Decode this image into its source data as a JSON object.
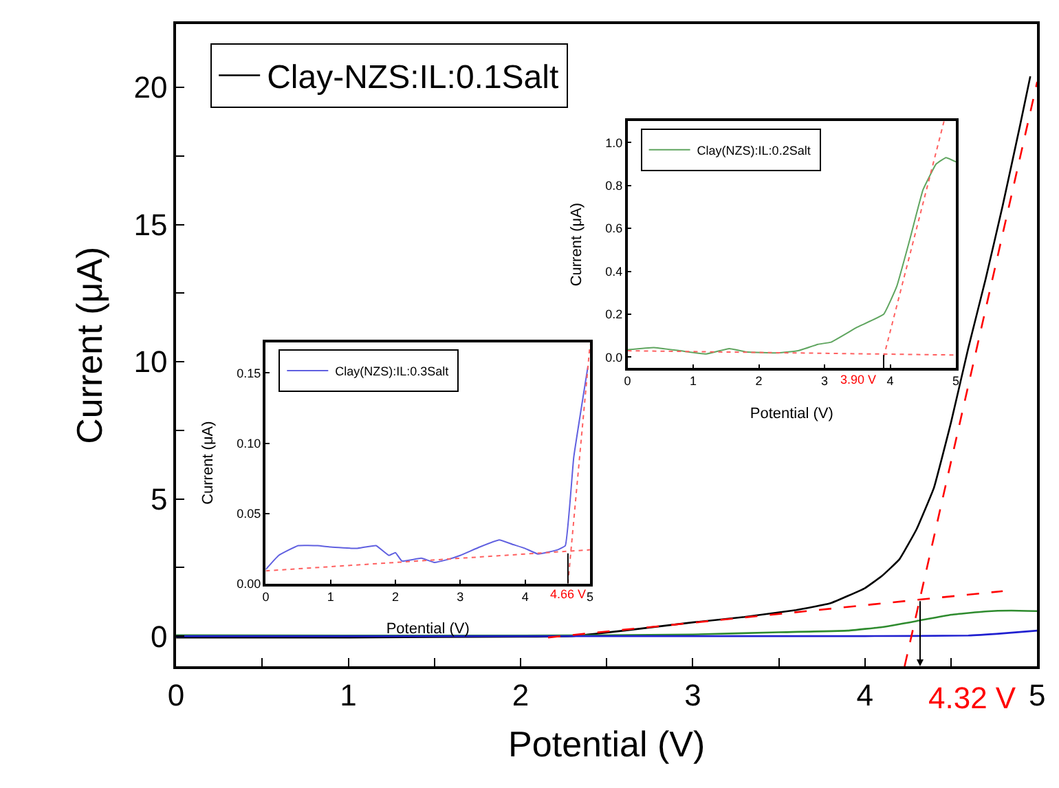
{
  "chart_data": [
    {
      "type": "line",
      "xlabel": "Potential (V)",
      "ylabel": "Current (μA)",
      "xlim": [
        0,
        5
      ],
      "ylim": [
        -1.1,
        22.3
      ],
      "xticks": [
        0,
        {
          "value": 0.5,
          "label": null
        },
        1,
        {
          "value": 1.5,
          "label": null
        },
        2,
        {
          "value": 2.5,
          "label": null
        },
        3,
        {
          "value": 3.5,
          "label": null
        },
        4,
        {
          "value": 4.5,
          "label": null
        },
        5
      ],
      "yticks": [
        0,
        {
          "value": 2.5,
          "label": null
        },
        5,
        {
          "value": 7.5,
          "label": null
        },
        10,
        {
          "value": 12.5,
          "label": null
        },
        15,
        {
          "value": 17.5,
          "label": null
        },
        20
      ],
      "grid": false,
      "legend": "top left",
      "marker": "none",
      "series": [
        {
          "name": "Clay-NZS:IL:0.1Salt",
          "color": "#000000",
          "x": [
            0,
            1,
            2,
            2.3,
            2.6,
            3.0,
            3.3,
            3.6,
            3.8,
            4.0,
            4.1,
            4.2,
            4.3,
            4.4,
            4.5,
            4.6,
            4.7,
            4.8,
            4.9,
            4.96
          ],
          "values": [
            -0.05,
            -0.05,
            -0.02,
            0.0,
            0.2,
            0.5,
            0.7,
            0.95,
            1.2,
            1.75,
            2.2,
            2.8,
            3.9,
            5.4,
            7.8,
            10.5,
            13.0,
            15.7,
            18.6,
            20.4
          ]
        },
        {
          "color": "#2e8b2e",
          "x": [
            0,
            1,
            2,
            2.5,
            3.0,
            3.5,
            3.9,
            4.1,
            4.3,
            4.5,
            4.7,
            4.85,
            5.0
          ],
          "values": [
            0.03,
            0.02,
            0.02,
            0.03,
            0.06,
            0.14,
            0.2,
            0.33,
            0.55,
            0.78,
            0.9,
            0.93,
            0.91
          ]
        },
        {
          "color": "#2020d0",
          "x": [
            0,
            1,
            2,
            3,
            4,
            4.6,
            4.8,
            5.0
          ],
          "values": [
            0.0,
            0.0,
            0.0,
            0.0,
            0.0,
            0.02,
            0.1,
            0.2
          ]
        },
        {
          "color": "#ff0000",
          "line_style": "dashed",
          "x": [
            2.16,
            4.8
          ],
          "values": [
            -0.05,
            1.64
          ]
        },
        {
          "color": "#ff0000",
          "line_style": "dashed",
          "x": [
            4.23,
            5.0
          ],
          "values": [
            -1.1,
            20.2
          ]
        }
      ],
      "annotations": [
        {
          "text": "4.32 V",
          "x": 4.32,
          "y": 1.35
        }
      ]
    },
    {
      "type": "line",
      "xlabel": "Potential (V)",
      "ylabel": "Current (μA)",
      "xlim": [
        0,
        5
      ],
      "ylim": [
        -0.05,
        1.1
      ],
      "xticks": [
        0,
        1,
        2,
        3,
        4,
        5
      ],
      "yticks": [
        {
          "value": 0,
          "label": "0.0"
        },
        0.2,
        0.4,
        0.6,
        0.8,
        {
          "value": 1,
          "label": "1.0"
        }
      ],
      "grid": false,
      "legend": "top left",
      "marker": "none",
      "series": [
        {
          "name": "Clay(NZS):IL:0.2Salt",
          "color": "#5fa55f",
          "x": [
            0,
            0.4,
            0.8,
            1.2,
            1.55,
            1.8,
            2.3,
            2.6,
            2.9,
            3.1,
            3.5,
            3.9,
            4.1,
            4.3,
            4.5,
            4.7,
            4.85,
            5.0
          ],
          "values": [
            0.035,
            0.045,
            0.03,
            0.015,
            0.04,
            0.025,
            0.02,
            0.03,
            0.06,
            0.07,
            0.14,
            0.2,
            0.33,
            0.55,
            0.78,
            0.9,
            0.93,
            0.91
          ]
        },
        {
          "color": "#ff6060",
          "line_style": "dotted",
          "x": [
            0,
            5
          ],
          "values": [
            0.03,
            0.01
          ]
        },
        {
          "color": "#ff6060",
          "line_style": "dotted",
          "x": [
            3.9,
            4.82
          ],
          "values": [
            0.0,
            1.1
          ]
        }
      ],
      "annotations": [
        {
          "text": "3.90 V",
          "x": 3.9,
          "y": 0.02
        }
      ]
    },
    {
      "type": "line",
      "xlabel": "Potential (V)",
      "ylabel": "Current (μA)",
      "xlim": [
        0,
        5
      ],
      "ylim": [
        0,
        0.172
      ],
      "xticks": [
        0,
        1,
        2,
        3,
        4,
        5
      ],
      "yticks": [
        {
          "value": 0,
          "label": "0.00"
        },
        {
          "value": 0.05,
          "label": "0.05"
        },
        {
          "value": 0.1,
          "label": "0.10"
        },
        {
          "value": 0.15,
          "label": "0.15"
        }
      ],
      "grid": false,
      "legend": "top left",
      "marker": "none",
      "series": [
        {
          "name": "Clay(NZS):IL:0.3Salt",
          "color": "#6060e0",
          "x": [
            0,
            0.2,
            0.5,
            0.8,
            1.0,
            1.4,
            1.7,
            1.9,
            2.0,
            2.1,
            2.4,
            2.6,
            2.8,
            3.0,
            3.3,
            3.6,
            3.8,
            4.0,
            4.2,
            4.5,
            4.62,
            4.75,
            4.97
          ],
          "values": [
            0.01,
            0.02,
            0.027,
            0.027,
            0.026,
            0.025,
            0.027,
            0.02,
            0.022,
            0.016,
            0.018,
            0.015,
            0.017,
            0.02,
            0.026,
            0.031,
            0.028,
            0.025,
            0.021,
            0.024,
            0.027,
            0.09,
            0.155
          ]
        },
        {
          "color": "#ff6060",
          "line_style": "dotted",
          "x": [
            0,
            5
          ],
          "values": [
            0.009,
            0.024
          ]
        },
        {
          "color": "#ff6060",
          "line_style": "dotted",
          "x": [
            4.66,
            5.0
          ],
          "values": [
            0.0,
            0.17
          ]
        }
      ],
      "annotations": [
        {
          "text": "4.66 V",
          "x": 4.66,
          "y": 0.023
        }
      ]
    }
  ]
}
